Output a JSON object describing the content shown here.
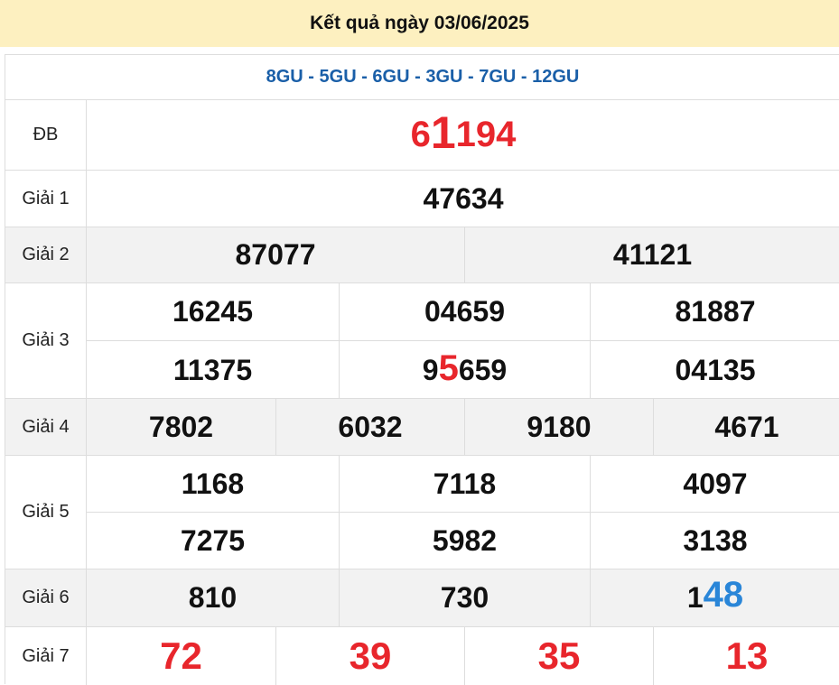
{
  "header": {
    "title": "Kết quả ngày 03/06/2025"
  },
  "codes": "8GU - 5GU - 6GU - 3GU - 7GU - 12GU",
  "colors": {
    "header_bg": "#fdf0c0",
    "red": "#e8262c",
    "blue": "#2a86d8",
    "code_blue": "#1a5fa8"
  },
  "prizes": {
    "db": {
      "label": "ĐB",
      "pre": "6",
      "hl": "1",
      "post": "194"
    },
    "g1": {
      "label": "Giải 1",
      "values": [
        "47634"
      ]
    },
    "g2": {
      "label": "Giải 2",
      "values": [
        "87077",
        "41121"
      ]
    },
    "g3": {
      "label": "Giải 3",
      "values": [
        "16245",
        "04659",
        "81887",
        "11375",
        "04135"
      ],
      "special": {
        "pre": "9",
        "hl": "5",
        "post": "659"
      }
    },
    "g4": {
      "label": "Giải 4",
      "values": [
        "7802",
        "6032",
        "9180",
        "4671"
      ]
    },
    "g5": {
      "label": "Giải 5",
      "values": [
        "1168",
        "7118",
        "4097",
        "7275",
        "5982",
        "3138"
      ]
    },
    "g6": {
      "label": "Giải 6",
      "values": [
        "810",
        "730"
      ],
      "special": {
        "pre": "1",
        "hl": "48"
      }
    },
    "g7": {
      "label": "Giải 7",
      "values": [
        "72",
        "39",
        "35",
        "13"
      ]
    }
  }
}
